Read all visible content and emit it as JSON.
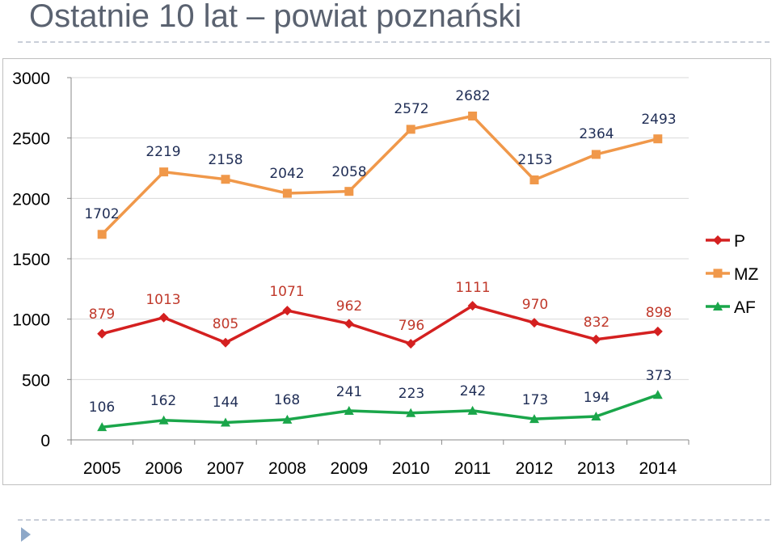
{
  "title": "Ostatnie 10 lat – powiat poznański",
  "colors": {
    "P": "#d42020",
    "MZ": "#f0984a",
    "AF": "#1aa64a",
    "label_P": "#c0392b",
    "label_MZ": "#1f2d55",
    "label_AF": "#1f2d55"
  },
  "chart_data": {
    "type": "line",
    "title": "",
    "xlabel": "",
    "ylabel": "",
    "categories": [
      "2005",
      "2006",
      "2007",
      "2008",
      "2009",
      "2010",
      "2011",
      "2012",
      "2013",
      "2014"
    ],
    "ylim": [
      0,
      3000
    ],
    "yticks": [
      "0",
      "500",
      "1000",
      "1500",
      "2000",
      "2500",
      "3000"
    ],
    "grid": "horizontal",
    "legend_position": "right",
    "series": [
      {
        "name": "P",
        "marker": "diamond",
        "values": [
          879,
          1013,
          805,
          1071,
          962,
          796,
          1111,
          970,
          832,
          898
        ]
      },
      {
        "name": "MZ",
        "marker": "square",
        "values": [
          1702,
          2219,
          2158,
          2042,
          2058,
          2572,
          2682,
          2153,
          2364,
          2493
        ]
      },
      {
        "name": "AF",
        "marker": "triangle",
        "values": [
          106,
          162,
          144,
          168,
          241,
          223,
          242,
          173,
          194,
          373
        ]
      }
    ]
  }
}
